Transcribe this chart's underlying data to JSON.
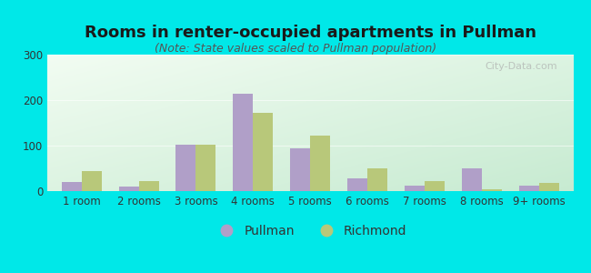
{
  "title": "Rooms in renter-occupied apartments in Pullman",
  "subtitle": "(Note: State values scaled to Pullman population)",
  "categories": [
    "1 room",
    "2 rooms",
    "3 rooms",
    "4 rooms",
    "5 rooms",
    "6 rooms",
    "7 rooms",
    "8 rooms",
    "9+ rooms"
  ],
  "pullman": [
    20,
    10,
    103,
    215,
    95,
    28,
    12,
    50,
    13
  ],
  "richmond": [
    45,
    22,
    103,
    172,
    122,
    50,
    22,
    5,
    18
  ],
  "pullman_color": "#b09fc8",
  "richmond_color": "#b8c87a",
  "bg_color": "#00e8e8",
  "ylim": [
    0,
    300
  ],
  "yticks": [
    0,
    100,
    200,
    300
  ],
  "bar_width": 0.35,
  "title_fontsize": 13,
  "subtitle_fontsize": 9,
  "tick_fontsize": 8.5,
  "legend_fontsize": 10,
  "watermark_text": "City-Data.com"
}
